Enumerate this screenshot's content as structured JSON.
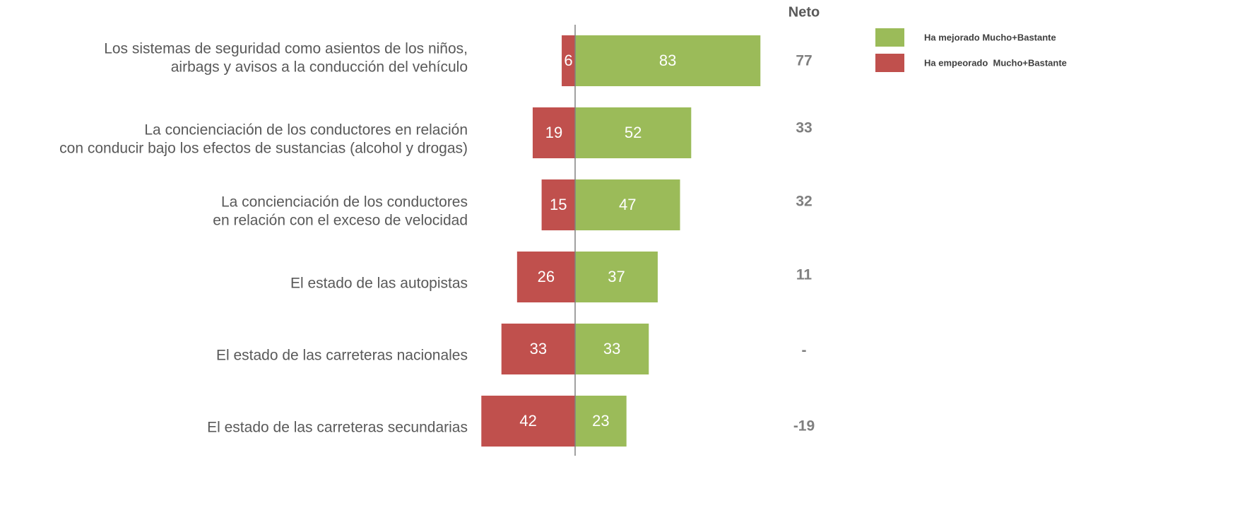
{
  "chart_data": {
    "type": "diverging-bar",
    "categories": [
      [
        "Los sistemas de seguridad como asientos de los niños,",
        "airbags y avisos a la conducción del vehículo"
      ],
      [
        "La concienciación de los conductores en relación",
        "con conducir bajo los efectos de sustancias (alcohol y drogas)"
      ],
      [
        "La concienciación de los conductores",
        "en relación con el exceso de velocidad"
      ],
      [
        "El estado de las autopistas"
      ],
      [
        "El estado de las carreteras nacionales"
      ],
      [
        "El estado de las carreteras secundarias"
      ]
    ],
    "series": [
      {
        "name": "Ha mejorado Mucho+Bastante",
        "color": "#9bbb59",
        "side": "right",
        "values": [
          83,
          52,
          47,
          37,
          33,
          23
        ]
      },
      {
        "name": "Ha empeorado  Mucho+Bastante",
        "color": "#c0504d",
        "side": "left",
        "values": [
          6,
          19,
          15,
          26,
          33,
          42
        ]
      }
    ],
    "net": {
      "title": "Neto",
      "values": [
        77,
        33,
        32,
        11,
        0,
        -19
      ],
      "value_labels": [
        "77",
        "33",
        "32",
        "11",
        "-",
        "-19"
      ]
    },
    "legend": "top-right"
  }
}
